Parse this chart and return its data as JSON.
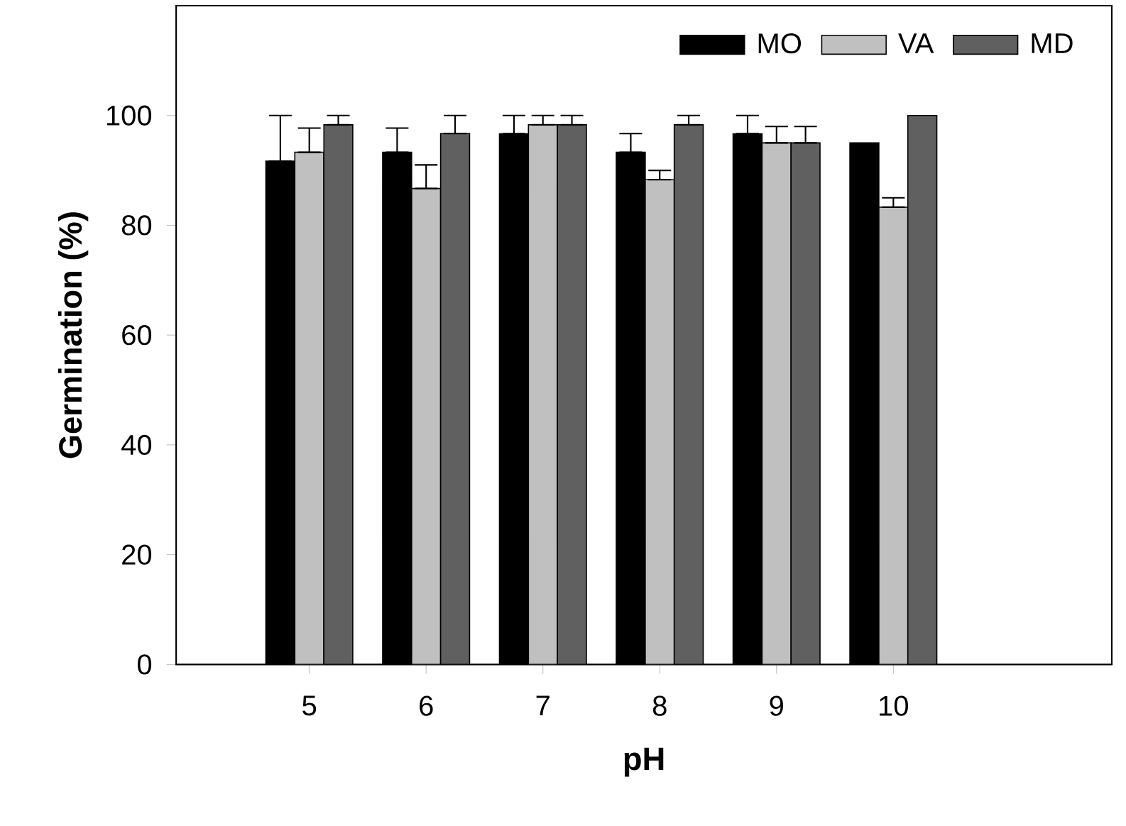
{
  "chart_data": {
    "type": "bar",
    "xlabel": "pH",
    "ylabel": "Germination (%)",
    "categories": [
      "5",
      "6",
      "7",
      "8",
      "9",
      "10"
    ],
    "series": [
      {
        "name": "MO",
        "color": "#000000",
        "values": [
          91.7,
          93.3,
          96.7,
          93.3,
          96.7,
          95
        ],
        "errors": [
          [
            91.7,
            100
          ],
          [
            93.3,
            97.7
          ],
          [
            96.7,
            100
          ],
          [
            93.3,
            96.7
          ],
          [
            96.7,
            100
          ],
          null
        ]
      },
      {
        "name": "VA",
        "color": "#c0c0c0",
        "values": [
          93.3,
          86.7,
          98.3,
          88.3,
          95,
          83.3
        ],
        "errors": [
          [
            93.3,
            97.7
          ],
          [
            86.7,
            91
          ],
          [
            98.3,
            100
          ],
          [
            88.3,
            90
          ],
          [
            95,
            98
          ],
          [
            83.3,
            85
          ]
        ]
      },
      {
        "name": "MD",
        "color": "#606060",
        "values": [
          98.3,
          96.7,
          98.3,
          98.3,
          95,
          100
        ],
        "errors": [
          [
            98.3,
            100
          ],
          [
            96.7,
            100
          ],
          [
            98.3,
            100
          ],
          [
            98.3,
            100
          ],
          [
            95,
            98
          ],
          null
        ]
      }
    ],
    "ylim": [
      0,
      120
    ],
    "yticks": [
      0,
      20,
      40,
      60,
      80,
      100
    ],
    "legend": "top right",
    "grid": false
  }
}
